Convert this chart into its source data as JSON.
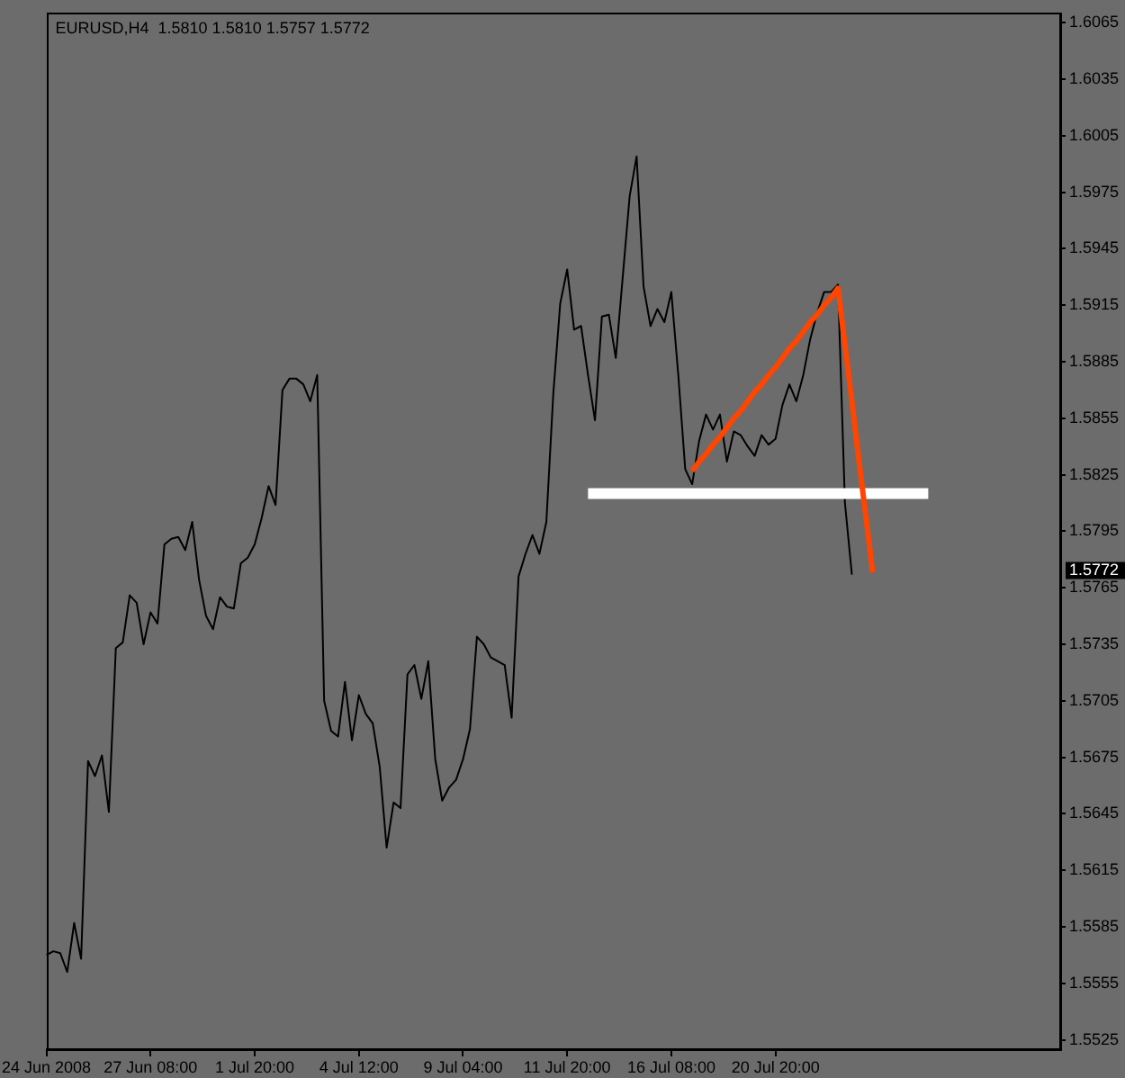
{
  "chart_data": {
    "type": "line",
    "title": "EURUSD,H4  1.5810 1.5810 1.5757 1.5772",
    "categories": [
      "24 Jun 2008",
      null,
      null,
      null,
      null,
      null,
      null,
      null,
      null,
      null,
      null,
      null,
      null,
      null,
      null,
      "27 Jun 08:00",
      null,
      null,
      null,
      null,
      null,
      null,
      null,
      null,
      null,
      null,
      null,
      null,
      null,
      null,
      "1 Jul 20:00",
      null,
      null,
      null,
      null,
      null,
      null,
      null,
      null,
      null,
      null,
      null,
      null,
      null,
      null,
      "4 Jul 12:00",
      null,
      null,
      null,
      null,
      null,
      null,
      null,
      null,
      null,
      null,
      null,
      null,
      null,
      null,
      "9 Jul 04:00",
      null,
      null,
      null,
      null,
      null,
      null,
      null,
      null,
      null,
      null,
      null,
      null,
      null,
      null,
      "11 Jul 20:00",
      null,
      null,
      null,
      null,
      null,
      null,
      null,
      null,
      null,
      null,
      null,
      null,
      null,
      null,
      "16 Jul 08:00",
      null,
      null,
      null,
      null,
      null,
      null,
      null,
      null,
      null,
      null,
      null,
      null,
      null,
      null,
      "20 Jul 20:00",
      null,
      null,
      null,
      null,
      null,
      null,
      null,
      null,
      null,
      null,
      null,
      null,
      null,
      null,
      null,
      null,
      null,
      null,
      null,
      null,
      null,
      null,
      null,
      null,
      null,
      null,
      null,
      null,
      null,
      null,
      null,
      null,
      null,
      null,
      null,
      null,
      null,
      null,
      null,
      null,
      null
    ],
    "ylim": [
      1.552,
      1.607
    ],
    "yticks": [
      1.5525,
      1.5555,
      1.5585,
      1.5615,
      1.5645,
      1.5675,
      1.5705,
      1.5735,
      1.5765,
      1.5795,
      1.5825,
      1.5855,
      1.5885,
      1.5915,
      1.5945,
      1.5975,
      1.6005,
      1.6035,
      1.6065
    ],
    "marker": "none",
    "series": [
      {
        "color": "#000000",
        "values": [
          1.557,
          1.5572,
          1.5571,
          1.5561,
          1.5587,
          1.5568,
          1.5673,
          1.5665,
          1.5676,
          1.5646,
          1.5733,
          1.5736,
          1.5761,
          1.5757,
          1.5735,
          1.5752,
          1.5746,
          1.5788,
          1.5791,
          1.5792,
          1.5785,
          1.58,
          1.5769,
          1.575,
          1.5743,
          1.576,
          1.5755,
          1.5754,
          1.5778,
          1.5781,
          1.5788,
          1.5802,
          1.5819,
          1.5809,
          1.587,
          1.5876,
          1.5876,
          1.5873,
          1.5864,
          1.5878,
          1.5705,
          1.5689,
          1.5686,
          1.5715,
          1.5684,
          1.5708,
          1.5698,
          1.5693,
          1.567,
          1.5627,
          1.5651,
          1.5648,
          1.5719,
          1.5724,
          1.5706,
          1.5726,
          1.5674,
          1.5652,
          1.5659,
          1.5663,
          1.5674,
          1.569,
          1.5739,
          1.5735,
          1.5728,
          1.5726,
          1.5724,
          1.5696,
          1.5771,
          1.5783,
          1.5793,
          1.5783,
          1.58,
          1.5868,
          1.5916,
          1.5934,
          1.5902,
          1.5904,
          1.5878,
          1.5854,
          1.5909,
          1.591,
          1.5887,
          1.593,
          1.5973,
          1.5994,
          1.5925,
          1.5904,
          1.5913,
          1.5906,
          1.5922,
          1.5878,
          1.5828,
          1.582,
          1.5843,
          1.5857,
          1.5849,
          1.5857,
          1.5832,
          1.5848,
          1.5846,
          1.584,
          1.5835,
          1.5846,
          1.5841,
          1.5844,
          1.5862,
          1.5873,
          1.5864,
          1.5878,
          1.5897,
          1.5911,
          1.5922,
          1.5922,
          1.5926,
          1.581,
          1.5772,
          null,
          null,
          null,
          null,
          null,
          null,
          null,
          null,
          null,
          null,
          null,
          null,
          null,
          null,
          null,
          null,
          null,
          null,
          null,
          null,
          null,
          null,
          null,
          null,
          null,
          null,
          null,
          null,
          null,
          null
        ]
      },
      {
        "type": "line",
        "color": "#ffffff",
        "values": [
          null,
          null,
          null,
          null,
          null,
          null,
          null,
          null,
          null,
          null,
          null,
          null,
          null,
          null,
          null,
          null,
          null,
          null,
          null,
          null,
          null,
          null,
          null,
          null,
          null,
          null,
          null,
          null,
          null,
          null,
          null,
          null,
          null,
          null,
          null,
          null,
          null,
          null,
          null,
          null,
          null,
          null,
          null,
          null,
          null,
          null,
          null,
          null,
          null,
          null,
          null,
          null,
          null,
          null,
          null,
          null,
          null,
          null,
          null,
          null,
          null,
          null,
          null,
          null,
          null,
          null,
          null,
          null,
          null,
          null,
          null,
          null,
          null,
          null,
          null,
          null,
          null,
          null,
          1.5815,
          1.5815,
          1.5815,
          1.5815,
          1.5815,
          1.5815,
          1.5815,
          1.5815,
          1.5815,
          1.5815,
          1.5815,
          1.5815,
          1.5815,
          1.5815,
          1.5815,
          1.5815,
          1.5815,
          1.5815,
          1.5815,
          1.5815,
          1.5815,
          1.5815,
          1.5815,
          1.5815,
          1.5815,
          1.5815,
          1.5815,
          1.5815,
          1.5815,
          1.5815,
          1.5815,
          1.5815,
          1.5815,
          1.5815,
          1.5815,
          1.5815,
          1.5815,
          1.5815,
          1.5815,
          1.5815,
          1.5815,
          1.5815,
          1.5815,
          1.5815,
          1.5815,
          1.5815,
          1.5815,
          1.5815,
          1.5815,
          1.5815,
          null,
          null,
          null,
          null,
          null,
          null,
          null,
          null,
          null,
          null,
          null,
          null,
          null,
          null,
          null,
          null,
          null,
          null,
          null
        ]
      },
      {
        "type": "line",
        "color": "#ff4500",
        "values": [
          null,
          null,
          null,
          null,
          null,
          null,
          null,
          null,
          null,
          null,
          null,
          null,
          null,
          null,
          null,
          null,
          null,
          null,
          null,
          null,
          null,
          null,
          null,
          null,
          null,
          null,
          null,
          null,
          null,
          null,
          null,
          null,
          null,
          null,
          null,
          null,
          null,
          null,
          null,
          null,
          null,
          null,
          null,
          null,
          null,
          null,
          null,
          null,
          null,
          null,
          null,
          null,
          null,
          null,
          null,
          null,
          null,
          null,
          null,
          null,
          null,
          null,
          null,
          null,
          null,
          null,
          null,
          null,
          null,
          null,
          null,
          null,
          null,
          null,
          null,
          null,
          null,
          null,
          null,
          null,
          null,
          null,
          null,
          null,
          null,
          null,
          null,
          null,
          null,
          null,
          null,
          null,
          null,
          1.5827,
          1.5832,
          1.5836,
          1.5841,
          1.5845,
          1.585,
          1.5855,
          1.5859,
          1.5864,
          1.5869,
          1.5873,
          1.5878,
          1.5882,
          1.5887,
          1.5892,
          1.5896,
          1.5901,
          1.5906,
          1.591,
          1.5915,
          1.5919,
          1.5924,
          1.5894,
          1.5864,
          1.5833,
          1.5803,
          1.5773,
          null,
          null,
          null,
          null,
          null,
          null,
          null,
          null,
          null,
          null,
          null,
          null,
          null,
          null,
          null,
          null,
          null,
          null,
          null,
          null,
          null,
          null,
          null,
          null,
          null,
          null,
          null
        ]
      }
    ],
    "annotations": [
      "1.5772"
    ]
  }
}
